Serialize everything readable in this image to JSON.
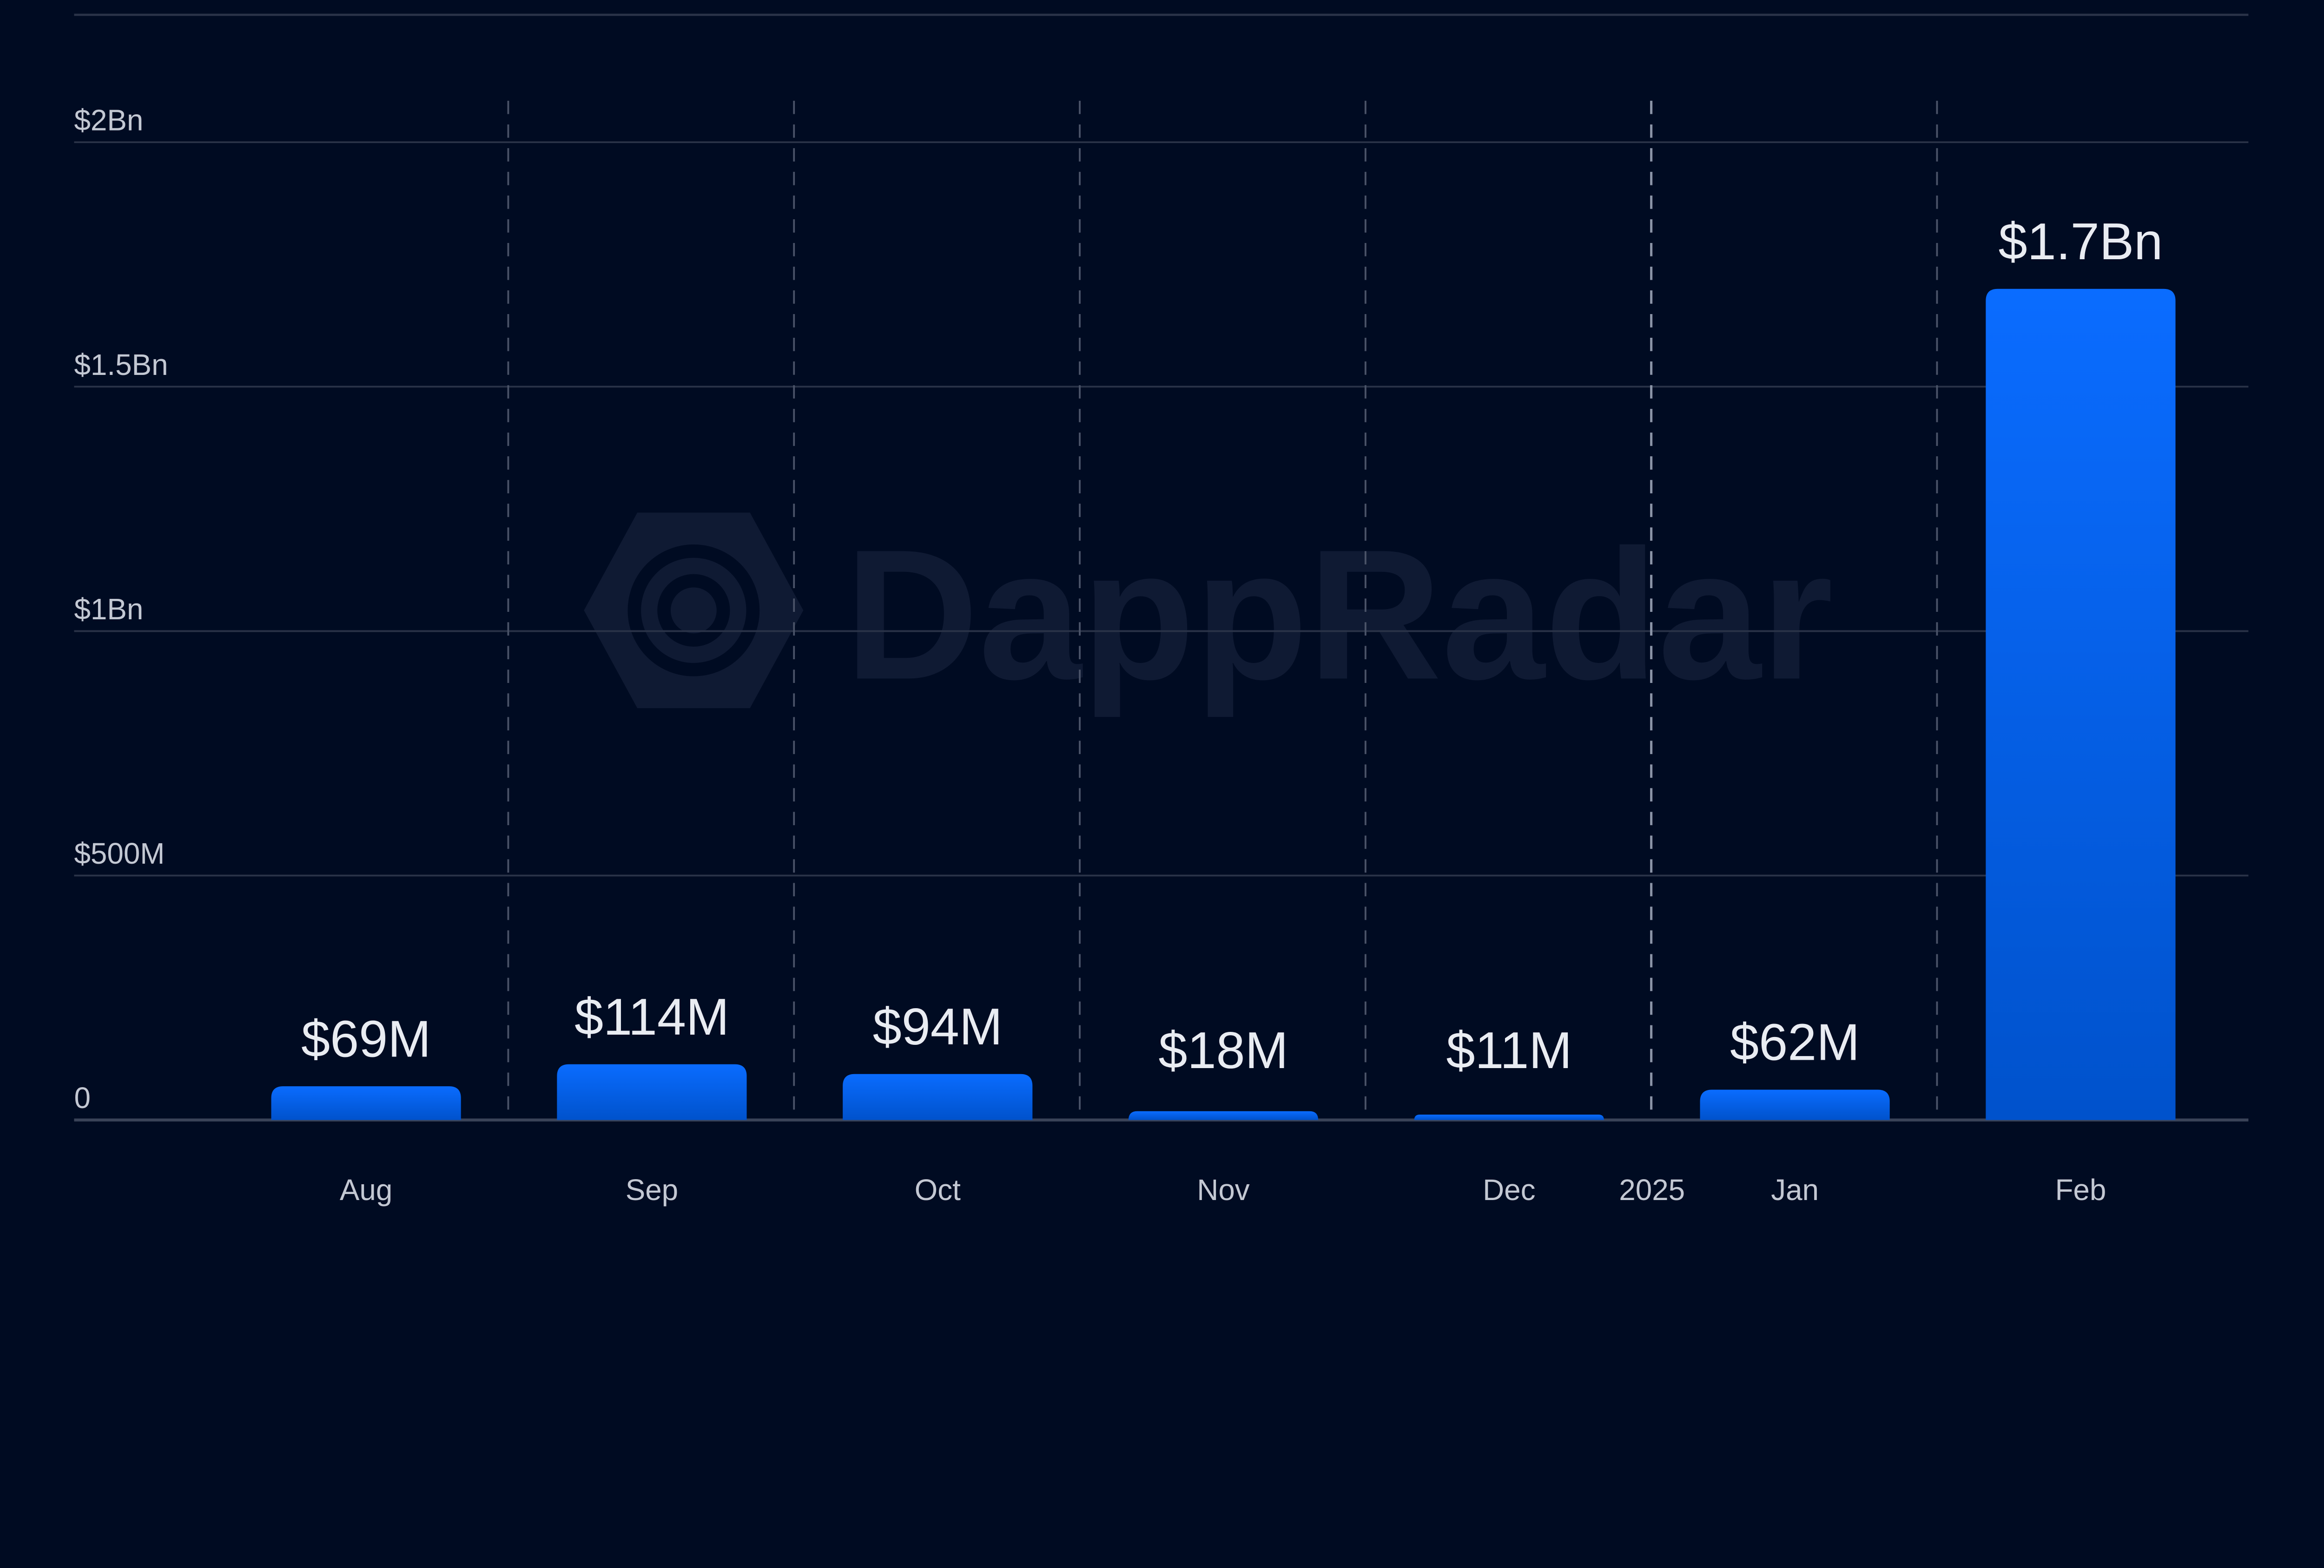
{
  "chart_data": {
    "type": "bar",
    "title": "",
    "xlabel": "",
    "ylabel": "",
    "categories": [
      "Aug",
      "Sep",
      "Oct",
      "Nov",
      "Dec",
      "Jan",
      "Feb"
    ],
    "values": [
      69,
      114,
      94,
      18,
      11,
      62,
      1700
    ],
    "unit": "USD millions",
    "data_labels": [
      "$69M",
      "$114M",
      "$94M",
      "$18M",
      "$11M",
      "$62M",
      "$1.7Bn"
    ],
    "ylim": [
      0,
      2000
    ],
    "yticks": [
      0,
      500,
      1000,
      1500,
      2000
    ],
    "ytick_labels": [
      "0",
      "$500M",
      "$1Bn",
      "$1.5Bn",
      "$2Bn"
    ],
    "year_marker": {
      "label": "2025",
      "position": "between Dec and Jan"
    },
    "grid": {
      "horizontal": true,
      "vertical_dashed": true
    },
    "legend": "none",
    "watermark": "DappRadar",
    "colors": {
      "background": "#000b22",
      "bar_top": "#0a6cff",
      "bar_bottom": "#0052cc",
      "grid": "#2a3348",
      "text": "#c3c8d3"
    }
  }
}
